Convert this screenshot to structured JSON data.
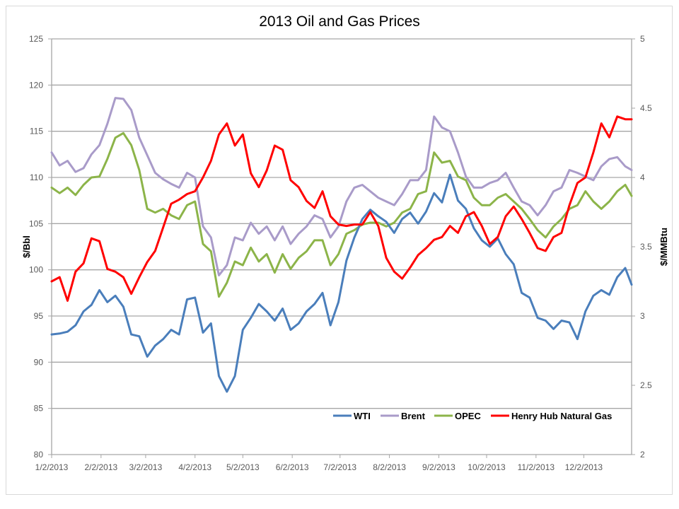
{
  "chart_data": {
    "type": "line",
    "title": "2013 Oil and Gas Prices",
    "ylabel": "$/Bbl",
    "y2label": "$/MMBtu",
    "ylim": [
      80,
      125
    ],
    "y2lim": [
      2,
      5
    ],
    "yticks": [
      "80",
      "85",
      "90",
      "95",
      "100",
      "105",
      "110",
      "115",
      "120",
      "125"
    ],
    "y2ticks": [
      "2",
      "2.5",
      "3",
      "3.5",
      "4",
      "4.5",
      "5"
    ],
    "xlim_days": [
      0,
      364
    ],
    "x_start_date": "1/2/2013",
    "xticks": [
      {
        "label": "1/2/2013",
        "day": 0
      },
      {
        "label": "2/2/2013",
        "day": 31
      },
      {
        "label": "3/2/2013",
        "day": 59
      },
      {
        "label": "4/2/2013",
        "day": 90
      },
      {
        "label": "5/2/2013",
        "day": 120
      },
      {
        "label": "6/2/2013",
        "day": 151
      },
      {
        "label": "7/2/2013",
        "day": 181
      },
      {
        "label": "8/2/2013",
        "day": 212
      },
      {
        "label": "9/2/2013",
        "day": 243
      },
      {
        "label": "10/2/2013",
        "day": 273
      },
      {
        "label": "11/2/2013",
        "day": 304
      },
      {
        "label": "12/2/2013",
        "day": 334
      }
    ],
    "grid": true,
    "legend_position": "bottom-right",
    "x_days": [
      0,
      5,
      10,
      15,
      20,
      25,
      30,
      35,
      40,
      45,
      50,
      55,
      60,
      65,
      70,
      75,
      80,
      85,
      90,
      95,
      100,
      105,
      110,
      115,
      120,
      125,
      130,
      135,
      140,
      145,
      150,
      155,
      160,
      165,
      170,
      175,
      180,
      185,
      190,
      195,
      200,
      205,
      210,
      215,
      220,
      225,
      230,
      235,
      240,
      245,
      250,
      255,
      260,
      265,
      270,
      275,
      280,
      285,
      290,
      295,
      300,
      305,
      310,
      315,
      320,
      325,
      330,
      335,
      340,
      345,
      350,
      355,
      360,
      364
    ],
    "series": [
      {
        "name": "WTI",
        "axis": "left",
        "color": "#4a7ebb",
        "values": [
          93,
          93.1,
          93.3,
          94,
          95.5,
          96.2,
          97.8,
          96.5,
          97.2,
          96,
          93,
          92.8,
          90.6,
          91.8,
          92.5,
          93.5,
          93,
          96.8,
          97,
          93.2,
          94.2,
          88.5,
          86.8,
          88.5,
          93.5,
          94.8,
          96.3,
          95.5,
          94.5,
          95.8,
          93.5,
          94.2,
          95.5,
          96.3,
          97.5,
          94,
          96.5,
          101,
          103.5,
          105.5,
          106.5,
          105.8,
          105.2,
          104,
          105.5,
          106.2,
          105,
          106.3,
          108.3,
          107.3,
          110.3,
          107.5,
          106.6,
          104.5,
          103.2,
          102.5,
          103.4,
          101.7,
          100.6,
          97.5,
          97,
          94.8,
          94.5,
          93.6,
          94.5,
          94.3,
          92.5,
          95.5,
          97.2,
          97.8,
          97.3,
          99.2,
          100.2,
          98.4
        ]
      },
      {
        "name": "Brent",
        "axis": "left",
        "color": "#a99bc9",
        "values": [
          112.7,
          111.3,
          111.8,
          110.6,
          111,
          112.5,
          113.5,
          115.8,
          118.6,
          118.5,
          117.3,
          114.3,
          112.4,
          110.5,
          109.8,
          109.3,
          108.9,
          110.5,
          110,
          104.7,
          103.5,
          99.4,
          100.5,
          103.5,
          103.2,
          105.1,
          103.9,
          104.7,
          103.2,
          104.7,
          102.8,
          103.9,
          104.7,
          105.9,
          105.5,
          103.5,
          104.7,
          107.4,
          108.9,
          109.2,
          108.5,
          107.8,
          107.4,
          107,
          108.2,
          109.7,
          109.7,
          110.8,
          116.6,
          115.4,
          115,
          112.7,
          110.1,
          108.9,
          108.9,
          109.4,
          109.7,
          110.5,
          108.9,
          107.4,
          107,
          105.9,
          107,
          108.5,
          108.9,
          110.8,
          110.5,
          110.1,
          109.7,
          111.2,
          112,
          112.2,
          111.2,
          110.8
        ]
      },
      {
        "name": "OPEC",
        "axis": "left",
        "color": "#8cb449",
        "values": [
          108.9,
          108.3,
          108.9,
          108.1,
          109.2,
          110,
          110.1,
          112,
          114.3,
          114.8,
          113.5,
          110.8,
          106.6,
          106.2,
          106.6,
          105.9,
          105.5,
          107,
          107.4,
          102.8,
          102,
          97.1,
          98.6,
          100.9,
          100.5,
          102.4,
          100.9,
          101.7,
          99.7,
          101.7,
          100.1,
          101.3,
          102,
          103.2,
          103.2,
          100.5,
          101.7,
          103.9,
          104.3,
          104.9,
          105.1,
          105.1,
          104.7,
          105.1,
          106.2,
          106.6,
          108.2,
          108.5,
          112.7,
          111.6,
          111.8,
          110.1,
          109.7,
          107.8,
          107,
          107,
          107.8,
          108.2,
          107.4,
          106.6,
          105.5,
          104.3,
          103.5,
          104.7,
          105.5,
          106.6,
          107,
          108.5,
          107.4,
          106.6,
          107.4,
          108.5,
          109.2,
          108
        ]
      },
      {
        "name": "Henry Hub Natural Gas",
        "axis": "right",
        "color": "#ff0000",
        "values": [
          3.25,
          3.28,
          3.11,
          3.32,
          3.38,
          3.56,
          3.54,
          3.34,
          3.32,
          3.28,
          3.16,
          3.28,
          3.39,
          3.47,
          3.64,
          3.81,
          3.84,
          3.88,
          3.9,
          4.0,
          4.12,
          4.31,
          4.39,
          4.23,
          4.31,
          4.03,
          3.93,
          4.05,
          4.23,
          4.2,
          3.98,
          3.93,
          3.83,
          3.78,
          3.9,
          3.72,
          3.66,
          3.65,
          3.66,
          3.66,
          3.75,
          3.65,
          3.42,
          3.32,
          3.27,
          3.35,
          3.44,
          3.49,
          3.55,
          3.57,
          3.65,
          3.6,
          3.72,
          3.75,
          3.65,
          3.52,
          3.57,
          3.72,
          3.79,
          3.7,
          3.6,
          3.49,
          3.47,
          3.57,
          3.6,
          3.8,
          3.96,
          4.0,
          4.18,
          4.39,
          4.29,
          4.44,
          4.42,
          4.42
        ]
      }
    ]
  }
}
